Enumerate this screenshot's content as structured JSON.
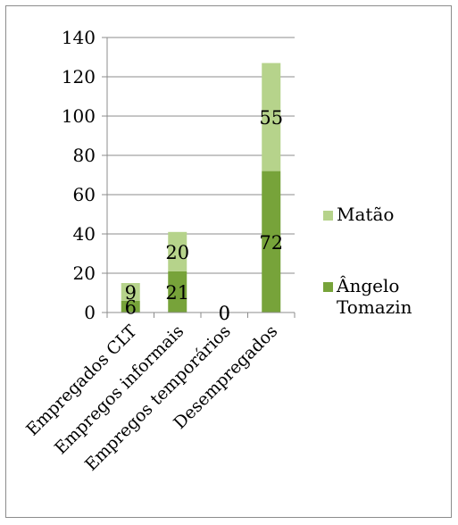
{
  "chart_data": {
    "type": "bar",
    "stacked": true,
    "categories": [
      "Empregados CLT",
      "Empregos informais",
      "Empregos temporários",
      "Desempregados"
    ],
    "series": [
      {
        "name": "Ângelo Tomazin",
        "values": [
          6,
          21,
          0,
          72
        ],
        "color": "#77a33a"
      },
      {
        "name": "Matão",
        "values": [
          9,
          20,
          0,
          55
        ],
        "color": "#b6d38b"
      }
    ],
    "ylim": [
      0,
      140
    ],
    "yticks": [
      0,
      20,
      40,
      60,
      80,
      100,
      120,
      140
    ],
    "grid": true,
    "legend_position": "right",
    "legend_order": [
      1,
      0
    ],
    "title": "",
    "xlabel": "",
    "ylabel": ""
  }
}
